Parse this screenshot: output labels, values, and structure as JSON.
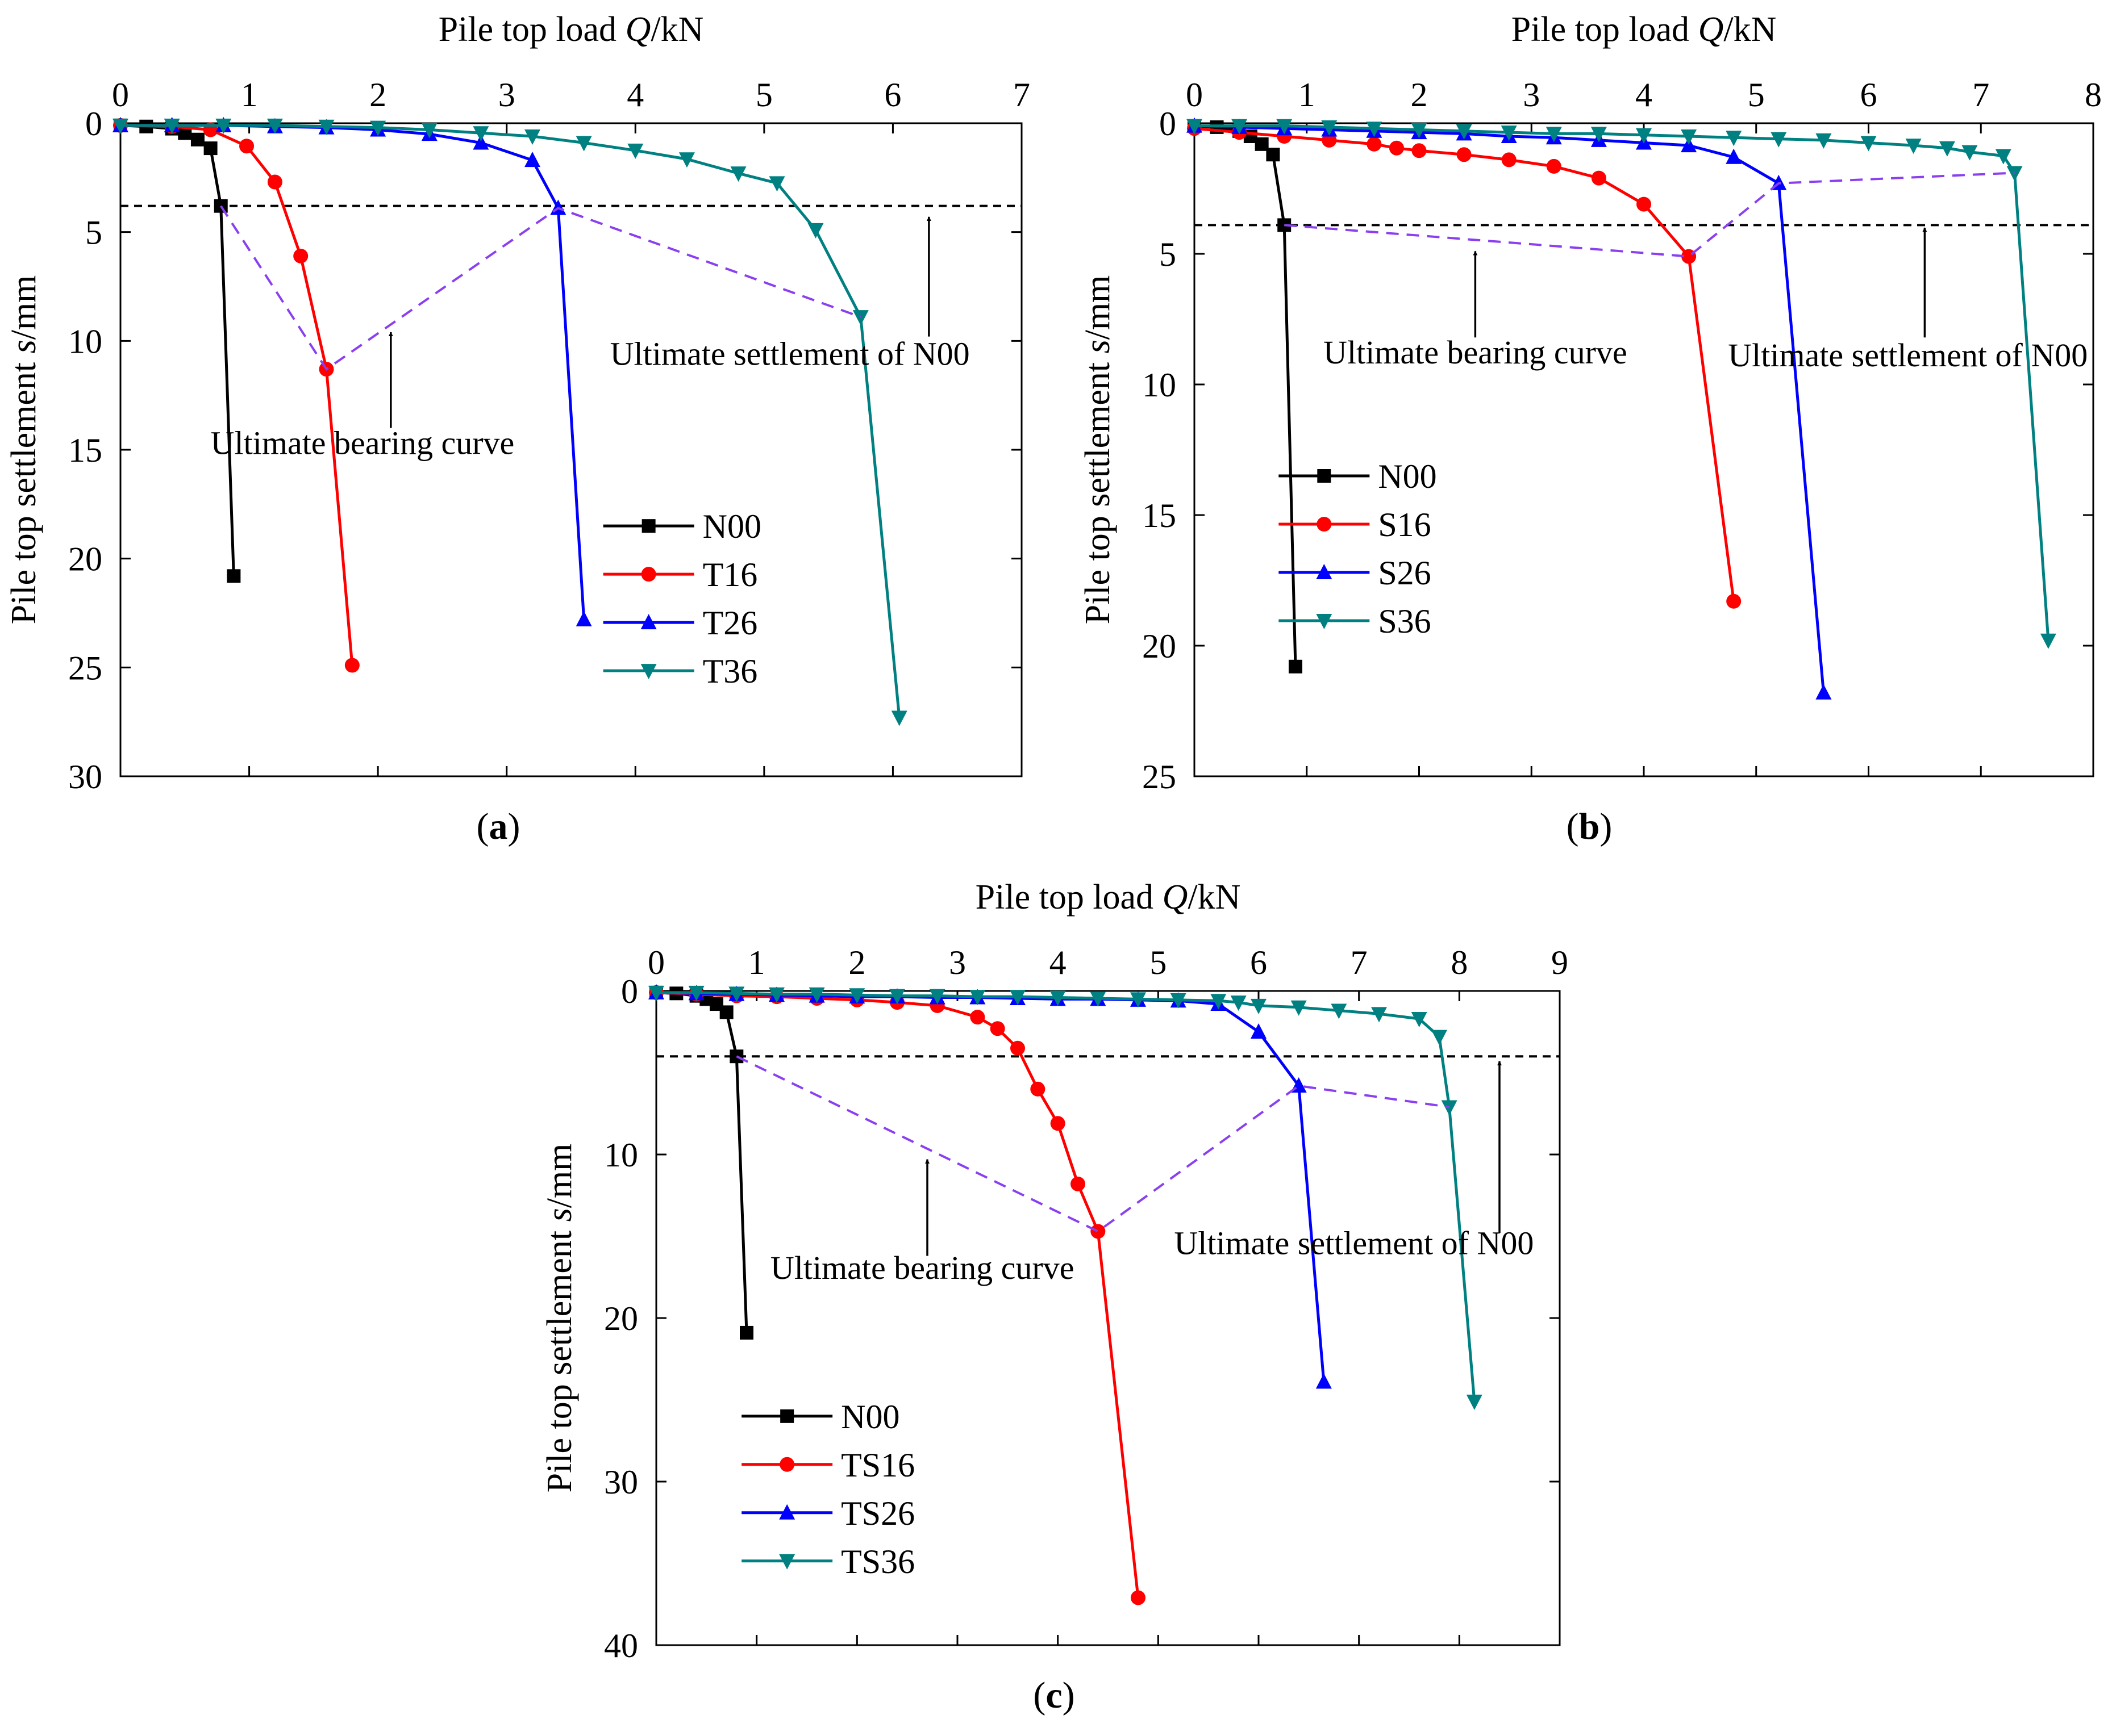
{
  "figure": {
    "panel_labels": [
      "(a)",
      "(b)",
      "(c)"
    ]
  },
  "chart_data": [
    {
      "id": "a",
      "type": "line",
      "panel_label": "(a)",
      "xlabel_prefix": "Pile top load ",
      "xlabel_var": "Q",
      "xlabel_suffix": "/kN",
      "ylabel_prefix": "Pile top settlement ",
      "ylabel_var": "s",
      "ylabel_suffix": "/mm",
      "xlim": [
        0,
        7
      ],
      "ylim": [
        0,
        30
      ],
      "xticks": [
        0,
        1,
        2,
        3,
        4,
        5,
        6,
        7
      ],
      "yticks": [
        0,
        5,
        10,
        15,
        20,
        25,
        30
      ],
      "x_axis_position": "top",
      "y_inverted": true,
      "legend_position": "lower-right",
      "reference_line_y": 3.8,
      "series": [
        {
          "name": "N00",
          "color": "#000000",
          "marker": "square",
          "x": [
            0,
            0.2,
            0.4,
            0.5,
            0.6,
            0.7,
            0.78,
            0.88
          ],
          "y": [
            0.1,
            0.15,
            0.25,
            0.45,
            0.75,
            1.15,
            3.8,
            20.8
          ]
        },
        {
          "name": "T16",
          "color": "#ff0000",
          "marker": "circle",
          "x": [
            0,
            0.4,
            0.7,
            0.98,
            1.2,
            1.4,
            1.6,
            1.8
          ],
          "y": [
            0.1,
            0.15,
            0.3,
            1.05,
            2.7,
            6.1,
            11.3,
            24.9
          ]
        },
        {
          "name": "T26",
          "color": "#0000ff",
          "marker": "triangle-up",
          "x": [
            0,
            0.4,
            0.8,
            1.2,
            1.6,
            2.0,
            2.4,
            2.8,
            3.2,
            3.4,
            3.6
          ],
          "y": [
            0.1,
            0.1,
            0.1,
            0.15,
            0.2,
            0.3,
            0.5,
            0.9,
            1.7,
            3.9,
            22.8
          ]
        },
        {
          "name": "T36",
          "color": "#008080",
          "marker": "triangle-down",
          "x": [
            0,
            0.4,
            0.8,
            1.2,
            1.6,
            2.0,
            2.4,
            2.8,
            3.2,
            3.6,
            4.0,
            4.4,
            4.8,
            5.1,
            5.4,
            5.75,
            6.05
          ],
          "y": [
            0.1,
            0.1,
            0.1,
            0.1,
            0.15,
            0.2,
            0.3,
            0.45,
            0.6,
            0.9,
            1.25,
            1.65,
            2.3,
            2.75,
            4.9,
            8.9,
            27.3
          ]
        }
      ],
      "bearing_curve": {
        "x": [
          0.78,
          1.6,
          3.4,
          5.75
        ],
        "y": [
          3.8,
          11.3,
          3.9,
          8.9
        ]
      },
      "annotations": [
        {
          "text": "Ultimate bearing curve",
          "x": 1.88,
          "y": 15.2,
          "anchor": "middle",
          "arrow_from": [
            2.1,
            14.0
          ],
          "arrow_to": [
            2.1,
            9.6
          ]
        },
        {
          "text": "Ultimate settlement of N00",
          "x": 5.2,
          "y": 11.1,
          "anchor": "middle",
          "arrow_from": [
            6.28,
            9.8
          ],
          "arrow_to": [
            6.28,
            4.3
          ]
        }
      ]
    },
    {
      "id": "b",
      "type": "line",
      "panel_label": "(b)",
      "xlabel_prefix": "Pile top load ",
      "xlabel_var": "Q",
      "xlabel_suffix": "/kN",
      "ylabel_prefix": "Pile top settlement ",
      "ylabel_var": "s",
      "ylabel_suffix": "/mm",
      "xlim": [
        0,
        8
      ],
      "ylim": [
        0,
        25
      ],
      "xticks": [
        0,
        1,
        2,
        3,
        4,
        5,
        6,
        7,
        8
      ],
      "yticks": [
        0,
        5,
        10,
        15,
        20,
        25
      ],
      "x_axis_position": "top",
      "y_inverted": true,
      "legend_position": "middle-left",
      "reference_line_y": 3.9,
      "series": [
        {
          "name": "N00",
          "color": "#000000",
          "marker": "square",
          "x": [
            0,
            0.2,
            0.4,
            0.5,
            0.6,
            0.7,
            0.8,
            0.9
          ],
          "y": [
            0.1,
            0.15,
            0.3,
            0.5,
            0.8,
            1.2,
            3.9,
            20.8
          ]
        },
        {
          "name": "S16",
          "color": "#ff0000",
          "marker": "circle",
          "x": [
            0,
            0.4,
            0.8,
            1.2,
            1.6,
            1.8,
            2.0,
            2.4,
            2.8,
            3.2,
            3.6,
            4.0,
            4.4,
            4.8
          ],
          "y": [
            0.2,
            0.35,
            0.5,
            0.65,
            0.8,
            0.95,
            1.05,
            1.2,
            1.4,
            1.65,
            2.1,
            3.1,
            5.1,
            18.3
          ]
        },
        {
          "name": "S26",
          "color": "#0000ff",
          "marker": "triangle-up",
          "x": [
            0,
            0.4,
            0.8,
            1.2,
            1.6,
            2.0,
            2.4,
            2.8,
            3.2,
            3.6,
            4.0,
            4.4,
            4.8,
            5.2,
            5.6
          ],
          "y": [
            0.1,
            0.15,
            0.2,
            0.25,
            0.3,
            0.35,
            0.4,
            0.5,
            0.55,
            0.65,
            0.75,
            0.85,
            1.3,
            2.3,
            21.8
          ]
        },
        {
          "name": "S36",
          "color": "#008080",
          "marker": "triangle-down",
          "x": [
            0,
            0.4,
            0.8,
            1.2,
            1.6,
            2.0,
            2.4,
            2.8,
            3.2,
            3.6,
            4.0,
            4.4,
            4.8,
            5.2,
            5.6,
            6.0,
            6.4,
            6.7,
            6.9,
            7.2,
            7.3,
            7.6
          ],
          "y": [
            0.1,
            0.1,
            0.1,
            0.15,
            0.2,
            0.25,
            0.3,
            0.35,
            0.4,
            0.4,
            0.45,
            0.5,
            0.55,
            0.6,
            0.65,
            0.75,
            0.85,
            0.95,
            1.1,
            1.25,
            1.9,
            19.8
          ]
        }
      ],
      "bearing_curve": {
        "x": [
          0.8,
          4.4,
          5.2,
          7.3
        ],
        "y": [
          3.9,
          5.1,
          2.3,
          1.9
        ]
      },
      "annotations": [
        {
          "text": "Ultimate bearing curve",
          "x": 2.5,
          "y": 9.2,
          "anchor": "middle",
          "arrow_from": [
            2.5,
            8.2
          ],
          "arrow_to": [
            2.5,
            4.9
          ]
        },
        {
          "text": "Ultimate settlement of N00",
          "x": 6.35,
          "y": 9.3,
          "anchor": "middle",
          "arrow_from": [
            6.5,
            8.2
          ],
          "arrow_to": [
            6.5,
            4.0
          ]
        }
      ]
    },
    {
      "id": "c",
      "type": "line",
      "panel_label": "(c)",
      "xlabel_prefix": "Pile top load ",
      "xlabel_var": "Q",
      "xlabel_suffix": "/kN",
      "ylabel_prefix": "Pile top settlement ",
      "ylabel_var": "s",
      "ylabel_suffix": "/mm",
      "xlim": [
        0,
        9
      ],
      "ylim": [
        0,
        40
      ],
      "xticks": [
        0,
        1,
        2,
        3,
        4,
        5,
        6,
        7,
        8,
        9
      ],
      "yticks": [
        0,
        10,
        20,
        30,
        40
      ],
      "x_axis_position": "top",
      "y_inverted": true,
      "legend_position": "lower-left",
      "reference_line_y": 4,
      "series": [
        {
          "name": "N00",
          "color": "#000000",
          "marker": "square",
          "x": [
            0,
            0.2,
            0.4,
            0.5,
            0.6,
            0.7,
            0.8,
            0.9
          ],
          "y": [
            0.1,
            0.15,
            0.3,
            0.5,
            0.8,
            1.3,
            4.0,
            20.9
          ]
        },
        {
          "name": "TS16",
          "color": "#ff0000",
          "marker": "circle",
          "x": [
            0,
            0.4,
            0.8,
            1.2,
            1.6,
            2.0,
            2.4,
            2.8,
            3.2,
            3.4,
            3.6,
            3.8,
            4.0,
            4.2,
            4.4,
            4.8
          ],
          "y": [
            0.1,
            0.2,
            0.3,
            0.35,
            0.45,
            0.55,
            0.7,
            0.9,
            1.6,
            2.3,
            3.5,
            6.0,
            8.1,
            11.8,
            14.7,
            37.1
          ]
        },
        {
          "name": "TS26",
          "color": "#0000ff",
          "marker": "triangle-up",
          "x": [
            0,
            0.4,
            0.8,
            1.2,
            1.6,
            2.0,
            2.4,
            2.8,
            3.2,
            3.6,
            4.0,
            4.4,
            4.8,
            5.2,
            5.6,
            6.0,
            6.4,
            6.65
          ],
          "y": [
            0.1,
            0.15,
            0.2,
            0.25,
            0.3,
            0.35,
            0.35,
            0.4,
            0.4,
            0.45,
            0.5,
            0.5,
            0.55,
            0.6,
            0.8,
            2.5,
            5.8,
            23.9
          ]
        },
        {
          "name": "TS36",
          "color": "#008080",
          "marker": "triangle-down",
          "x": [
            0,
            0.4,
            0.8,
            1.2,
            1.6,
            2.0,
            2.4,
            2.8,
            3.2,
            3.6,
            4.0,
            4.4,
            4.8,
            5.2,
            5.6,
            5.8,
            6.0,
            6.4,
            6.8,
            7.2,
            7.6,
            7.8,
            7.9,
            8.15
          ],
          "y": [
            0.1,
            0.1,
            0.15,
            0.2,
            0.2,
            0.25,
            0.3,
            0.3,
            0.35,
            0.35,
            0.4,
            0.45,
            0.5,
            0.55,
            0.6,
            0.7,
            0.9,
            1.0,
            1.2,
            1.4,
            1.7,
            2.8,
            7.1,
            25.1
          ]
        }
      ],
      "bearing_curve": {
        "x": [
          0.8,
          4.4,
          6.4,
          7.9
        ],
        "y": [
          4.0,
          14.7,
          5.8,
          7.1
        ]
      },
      "annotations": [
        {
          "text": "Ultimate bearing curve",
          "x": 2.65,
          "y": 17.6,
          "anchor": "middle",
          "arrow_from": [
            2.7,
            16.2
          ],
          "arrow_to": [
            2.7,
            10.3
          ]
        },
        {
          "text": "Ultimate settlement of N00",
          "x": 6.95,
          "y": 16.1,
          "anchor": "middle",
          "arrow_from": [
            8.4,
            14.8
          ],
          "arrow_to": [
            8.4,
            4.3
          ]
        }
      ]
    }
  ]
}
